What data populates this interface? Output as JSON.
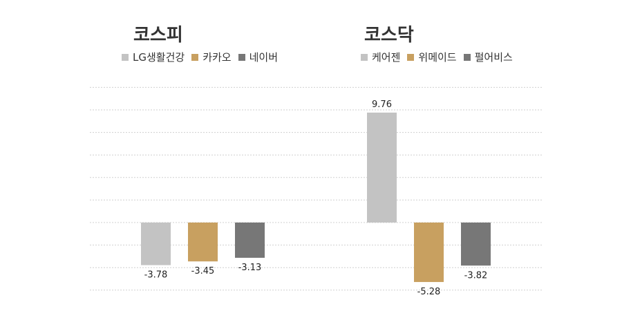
{
  "colors": {
    "light_gray": "#c3c3c3",
    "gold": "#c8a060",
    "dark_gray": "#777777",
    "grid": "#cfcfcf"
  },
  "chart_data": [
    {
      "type": "bar",
      "title": "코스피",
      "categories": [
        "LG생활건강",
        "카카오",
        "네이버"
      ],
      "values": [
        -3.78,
        -3.45,
        -3.13
      ],
      "value_labels": [
        "-3.78",
        "-3.45",
        "-3.13"
      ],
      "colors": [
        "#c3c3c3",
        "#c8a060",
        "#777777"
      ],
      "legend": [
        "LG생활건강",
        "카카오",
        "네이버"
      ],
      "legend_position": "top",
      "grid": true,
      "ylim": [
        -6,
        12
      ]
    },
    {
      "type": "bar",
      "title": "코스닥",
      "categories": [
        "케어젠",
        "위메이드",
        "펄어비스"
      ],
      "values": [
        9.76,
        -5.28,
        -3.82
      ],
      "value_labels": [
        "9.76",
        "-5.28",
        "-3.82"
      ],
      "colors": [
        "#c3c3c3",
        "#c8a060",
        "#777777"
      ],
      "legend": [
        "케어젠",
        "위메이드",
        "펄어비스"
      ],
      "legend_position": "top",
      "grid": true,
      "ylim": [
        -6,
        12
      ]
    }
  ]
}
